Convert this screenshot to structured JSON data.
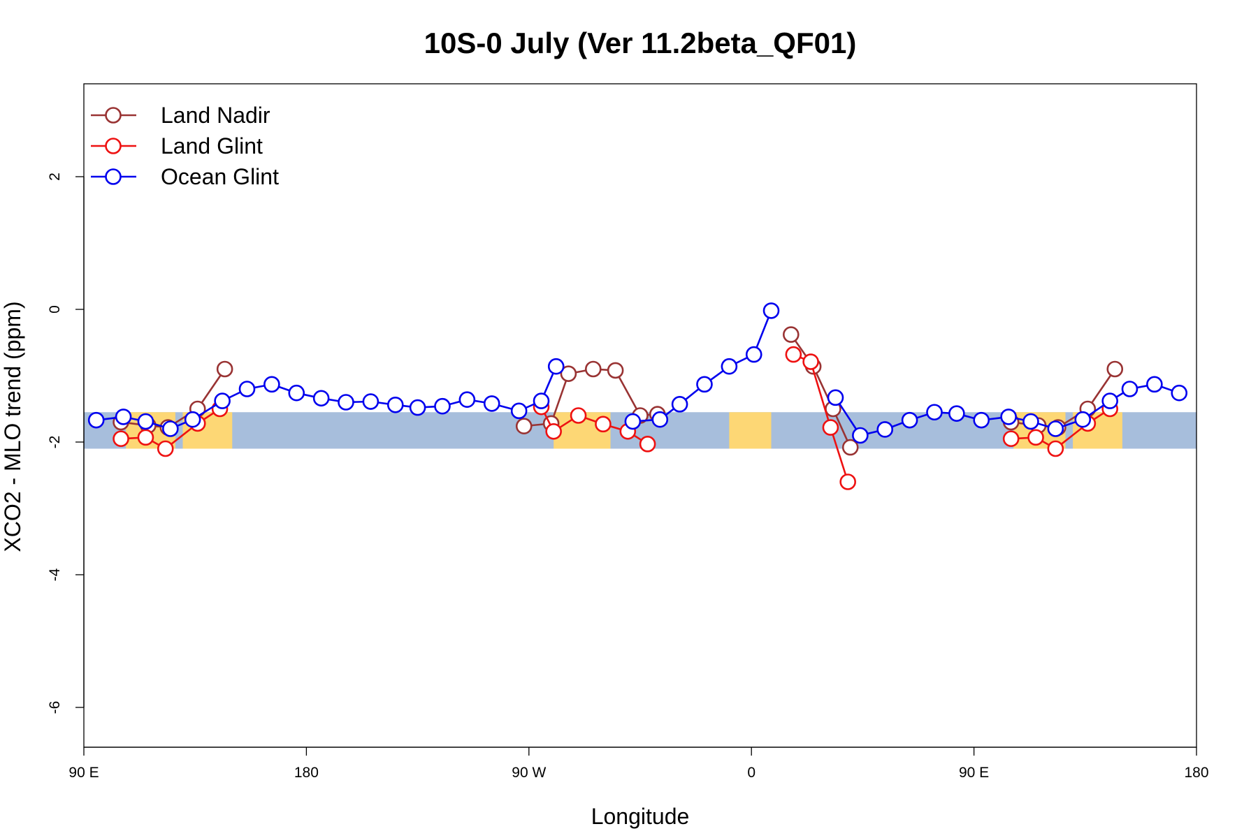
{
  "chart_data": {
    "type": "line",
    "title": "10S-0 July (Ver 11.2beta_QF01)",
    "xlabel": "Longitude",
    "ylabel": "XCO2 - MLO trend (ppm)",
    "xlim": [
      90,
      540
    ],
    "ylim": [
      -6.6,
      3.4
    ],
    "x_ticks": [
      {
        "value": 90,
        "label": "90 E"
      },
      {
        "value": 180,
        "label": "180"
      },
      {
        "value": 270,
        "label": "90 W"
      },
      {
        "value": 360,
        "label": "0"
      },
      {
        "value": 450,
        "label": "90 E"
      },
      {
        "value": 540,
        "label": "180"
      }
    ],
    "y_ticks": [
      {
        "value": 2,
        "label": "2"
      },
      {
        "value": 0,
        "label": "0"
      },
      {
        "value": -2,
        "label": "-2"
      },
      {
        "value": -4,
        "label": "-4"
      },
      {
        "value": -6,
        "label": "-6"
      }
    ],
    "background_band": {
      "ymin": -2.1,
      "ymax": -1.55,
      "ocean_color": "#a7bedc",
      "land_color": "#fdd775"
    },
    "land_segments": [
      [
        107,
        127
      ],
      [
        130,
        150
      ],
      [
        280,
        303
      ],
      [
        351,
        368
      ],
      [
        466,
        487
      ],
      [
        490,
        510
      ]
    ],
    "legend_position": "top-left",
    "series": [
      {
        "name": "Land Nadir",
        "color": "#993333",
        "segments": [
          [
            [
              105,
              -1.7
            ],
            [
              116,
              -1.75
            ],
            [
              124,
              -1.78
            ],
            [
              136,
              -1.5
            ],
            [
              147,
              -0.9
            ]
          ],
          [
            [
              268,
              -1.76
            ],
            [
              279,
              -1.72
            ],
            [
              286,
              -0.97
            ],
            [
              296,
              -0.9
            ],
            [
              305,
              -0.92
            ],
            [
              315,
              -1.6
            ],
            [
              322,
              -1.58
            ]
          ],
          [
            [
              376,
              -0.38
            ],
            [
              385,
              -0.86
            ],
            [
              393,
              -1.5
            ],
            [
              400,
              -2.08
            ]
          ],
          [
            [
              465,
              -1.7
            ],
            [
              476,
              -1.75
            ],
            [
              484,
              -1.78
            ],
            [
              496,
              -1.5
            ],
            [
              507,
              -0.9
            ]
          ]
        ]
      },
      {
        "name": "Land Glint",
        "color": "#ee1111",
        "segments": [
          [
            [
              105,
              -1.95
            ],
            [
              115,
              -1.93
            ],
            [
              123,
              -2.1
            ],
            [
              136,
              -1.72
            ],
            [
              145,
              -1.5
            ]
          ],
          [
            [
              275,
              -1.47
            ],
            [
              280,
              -1.84
            ],
            [
              290,
              -1.6
            ],
            [
              300,
              -1.73
            ],
            [
              310,
              -1.84
            ],
            [
              318,
              -2.03
            ]
          ],
          [
            [
              377,
              -0.68
            ],
            [
              384,
              -0.79
            ],
            [
              392,
              -1.78
            ],
            [
              399,
              -2.6
            ]
          ],
          [
            [
              465,
              -1.95
            ],
            [
              475,
              -1.93
            ],
            [
              483,
              -2.1
            ],
            [
              496,
              -1.72
            ],
            [
              505,
              -1.5
            ]
          ]
        ]
      },
      {
        "name": "Ocean Glint",
        "color": "#0000ee",
        "segments": [
          [
            [
              95,
              -1.67
            ],
            [
              106,
              -1.62
            ],
            [
              115,
              -1.69
            ],
            [
              125,
              -1.8
            ],
            [
              134,
              -1.66
            ],
            [
              146,
              -1.38
            ],
            [
              156,
              -1.2
            ],
            [
              166,
              -1.13
            ],
            [
              176,
              -1.26
            ],
            [
              186,
              -1.34
            ],
            [
              196,
              -1.4
            ],
            [
              206,
              -1.39
            ],
            [
              216,
              -1.44
            ],
            [
              225,
              -1.48
            ],
            [
              235,
              -1.46
            ],
            [
              245,
              -1.36
            ],
            [
              255,
              -1.42
            ],
            [
              266,
              -1.53
            ],
            [
              275,
              -1.38
            ],
            [
              281,
              -0.86
            ]
          ],
          [
            [
              312,
              -1.69
            ],
            [
              323,
              -1.66
            ],
            [
              331,
              -1.43
            ],
            [
              341,
              -1.13
            ],
            [
              351,
              -0.86
            ],
            [
              361,
              -0.68
            ],
            [
              368,
              -0.02
            ]
          ],
          [
            [
              394,
              -1.33
            ],
            [
              404,
              -1.9
            ],
            [
              414,
              -1.81
            ],
            [
              424,
              -1.67
            ],
            [
              434,
              -1.55
            ],
            [
              443,
              -1.57
            ],
            [
              453,
              -1.67
            ],
            [
              464,
              -1.62
            ],
            [
              473,
              -1.69
            ],
            [
              483,
              -1.8
            ],
            [
              494,
              -1.66
            ],
            [
              505,
              -1.38
            ],
            [
              513,
              -1.2
            ],
            [
              523,
              -1.13
            ],
            [
              533,
              -1.26
            ]
          ]
        ]
      }
    ]
  }
}
